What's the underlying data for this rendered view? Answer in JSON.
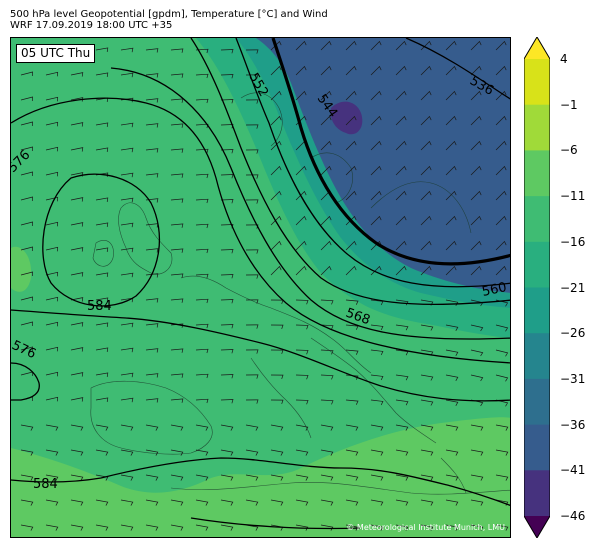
{
  "title": {
    "line1": "500 hPa level Geopotential [gpdm], Temperature [°C] and Wind",
    "line2": "WRF 17.09.2019 18:00 UTC +35"
  },
  "time_label": "05 UTC Thu",
  "credit": "© Meteorological Institute Munich, LMU",
  "colorbar": {
    "ticks": [
      "4",
      "−1",
      "−6",
      "−11",
      "−16",
      "−21",
      "−26",
      "−31",
      "−36",
      "−41",
      "−46"
    ],
    "colors": [
      "#fde725",
      "#d8e219",
      "#a0da39",
      "#5ec962",
      "#3fbc73",
      "#29af7f",
      "#1f9e89",
      "#25858e",
      "#2e6f8e",
      "#365c8d",
      "#46327e",
      "#440154"
    ]
  },
  "contour_labels": [
    "552",
    "544",
    "536",
    "576",
    "584",
    "568",
    "560",
    "576",
    "584"
  ],
  "colors": {
    "warm_green": "#5ec962",
    "mid_green": "#3fbc73",
    "teal": "#29af7f",
    "cold_blue": "#365c8d"
  }
}
